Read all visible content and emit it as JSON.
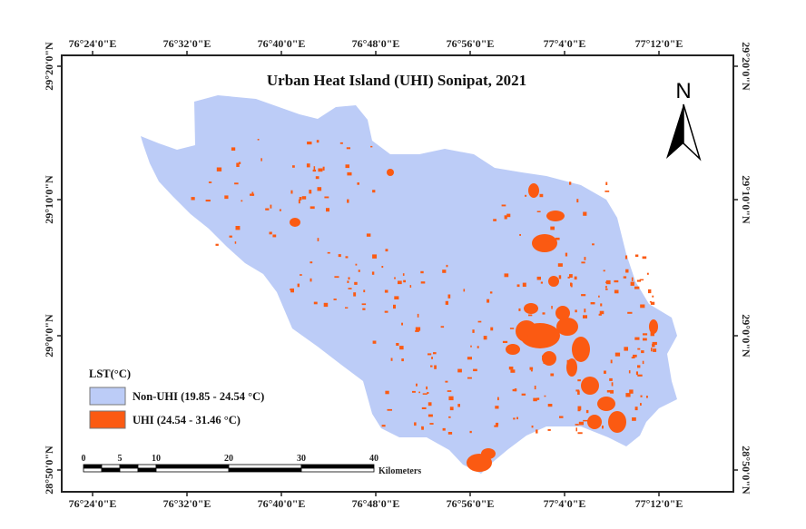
{
  "map": {
    "title": "Urban Heat Island (UHI) Sonipat, 2021",
    "north_label": "N",
    "lon_ticks": [
      "76°24'0\"E",
      "76°32'0\"E",
      "76°40'0\"E",
      "76°48'0\"E",
      "76°56'0\"E",
      "77°4'0\"E",
      "77°12'0\"E"
    ],
    "lat_ticks": [
      "29°20'0\"N",
      "29°10'0\"N",
      "29°0'0\"N",
      "28°50'0\"N"
    ],
    "legend": {
      "title": "LST(°C)",
      "items": [
        {
          "label": "Non-UHI (19.85 - 24.54 °C)",
          "color": "#bcccf7"
        },
        {
          "label": "UHI (24.54 - 31.46 °C)",
          "color": "#fb5a12"
        }
      ]
    },
    "scale_bar": {
      "labels": [
        "0",
        "5",
        "10",
        "20",
        "30",
        "40"
      ],
      "unit": "Kilometers"
    },
    "colors": {
      "district": "#bcccf7",
      "uhi": "#fb5a12",
      "frame": "#222222"
    }
  }
}
